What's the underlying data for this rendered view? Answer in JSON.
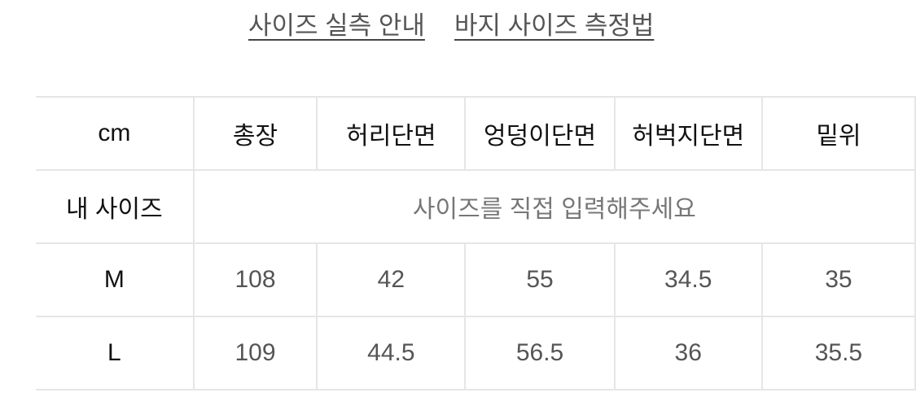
{
  "links": {
    "size_guide": "사이즈 실측 안내",
    "measure_guide": "바지 사이즈 측정법"
  },
  "table": {
    "headers": [
      "cm",
      "총장",
      "허리단면",
      "엉덩이단면",
      "허벅지단면",
      "밑위"
    ],
    "my_size": {
      "label": "내 사이즈",
      "placeholder": "사이즈를 직접 입력해주세요"
    },
    "rows": [
      {
        "size": "M",
        "values": [
          "108",
          "42",
          "55",
          "34.5",
          "35"
        ]
      },
      {
        "size": "L",
        "values": [
          "109",
          "44.5",
          "56.5",
          "36",
          "35.5"
        ]
      }
    ]
  }
}
